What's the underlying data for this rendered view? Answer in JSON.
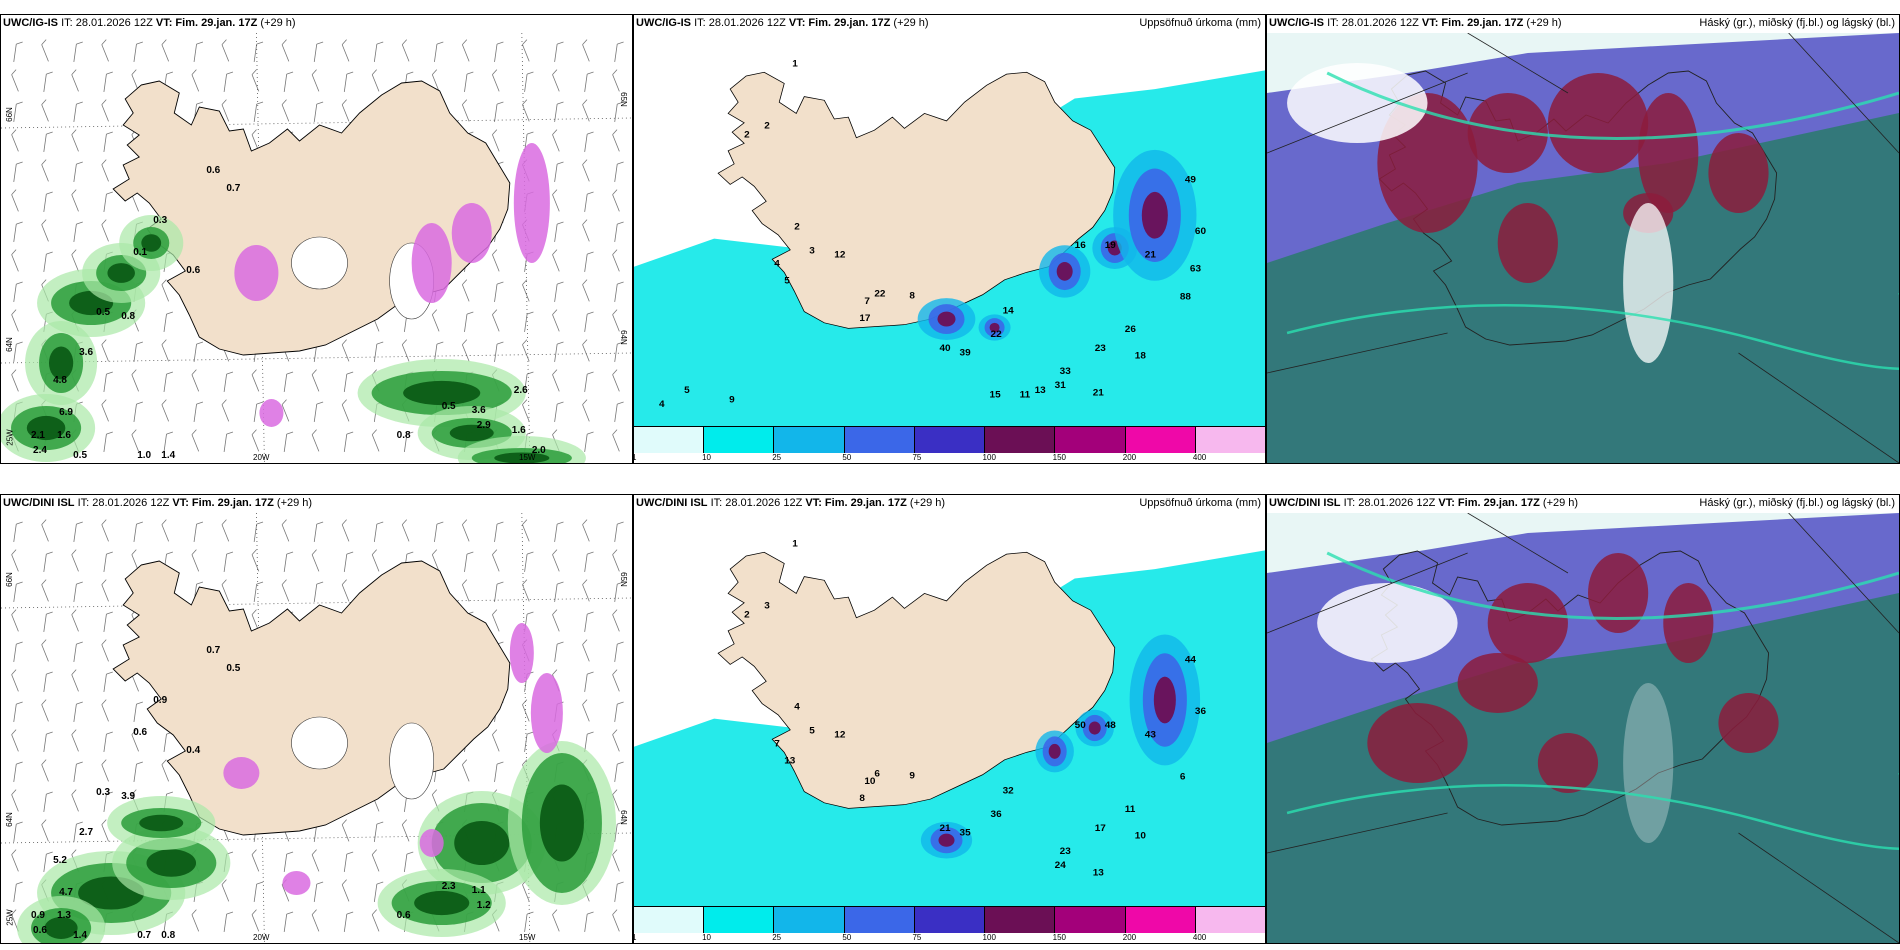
{
  "panels": [
    {
      "id": "p1",
      "model": "UWC/IG-IS",
      "it": "IT: 28.01.2026 12Z",
      "vt_label": "VT:",
      "vt": "Fim. 29.jan. 17Z",
      "lead": "(+29 h)",
      "title": "",
      "type": "wind",
      "axis": {
        "lat_top": "66N",
        "lat_mid": "64N",
        "lat_bot": "25W",
        "lon_a": "20W",
        "lon_b": "15W",
        "right_top": "65N",
        "right_mid": "64N"
      },
      "values": [
        "0.6",
        "0.7",
        "0.3",
        "0.1",
        "0.6",
        "0.5",
        "0.8",
        "3.6",
        "4.8",
        "6.9",
        "2.1",
        "1.6",
        "2.4",
        "0.5",
        "1.0",
        "1.4",
        "0.5",
        "3.6",
        "2.9",
        "0.8",
        "2.0",
        "2.6",
        "1.6"
      ]
    },
    {
      "id": "p2",
      "model": "UWC/IG-IS",
      "it": "IT: 28.01.2026 12Z",
      "vt_label": "VT:",
      "vt": "Fim. 29.jan. 17Z",
      "lead": "(+29 h)",
      "title": "Uppsöfnuð úrkoma (mm)",
      "type": "precip",
      "values": [
        "1",
        "2",
        "2",
        "2",
        "3",
        "4",
        "5",
        "7",
        "12",
        "22",
        "17",
        "8",
        "40",
        "39",
        "22",
        "14",
        "31",
        "33",
        "23",
        "21",
        "26",
        "18",
        "16",
        "19",
        "21",
        "49",
        "60",
        "88",
        "63",
        "11",
        "15",
        "13",
        "9",
        "5",
        "4"
      ]
    },
    {
      "id": "p3",
      "model": "UWC/IG-IS",
      "it": "IT: 28.01.2026 12Z",
      "vt_label": "VT:",
      "vt": "Fim. 29.jan. 17Z",
      "lead": "(+29 h)",
      "title": "Háský (gr.), miðský (fj.bl.) og lágský (bl.)",
      "type": "cloud"
    },
    {
      "id": "p4",
      "model": "UWC/DINI ISL",
      "it": "IT: 28.01.2026 12Z",
      "vt_label": "VT:",
      "vt": "Fim. 29.jan. 17Z",
      "lead": "(+29 h)",
      "title": "",
      "type": "wind",
      "axis": {
        "lat_top": "66N",
        "lat_mid": "64N",
        "lat_bot": "25W",
        "lon_a": "20W",
        "lon_b": "15W",
        "right_top": "65N",
        "right_mid": "64N"
      },
      "values": [
        "0.7",
        "0.5",
        "0.9",
        "0.6",
        "0.4",
        "0.3",
        "3.9",
        "2.7",
        "5.2",
        "4.7",
        "0.9",
        "1.3",
        "0.6",
        "1.4",
        "0.7",
        "0.8",
        "2.3",
        "1.1",
        "1.2",
        "0.6"
      ]
    },
    {
      "id": "p5",
      "model": "UWC/DINI ISL",
      "it": "IT: 28.01.2026 12Z",
      "vt_label": "VT:",
      "vt": "Fim. 29.jan. 17Z",
      "lead": "(+29 h)",
      "title": "Uppsöfnuð úrkoma (mm)",
      "type": "precip",
      "values": [
        "1",
        "2",
        "3",
        "4",
        "5",
        "7",
        "13",
        "10",
        "12",
        "6",
        "8",
        "9",
        "21",
        "35",
        "36",
        "32",
        "24",
        "23",
        "17",
        "13",
        "11",
        "10",
        "50",
        "48",
        "43",
        "44",
        "36",
        "6"
      ]
    },
    {
      "id": "p6",
      "model": "UWC/DINI ISL",
      "it": "IT: 28.01.2026 12Z",
      "vt_label": "VT:",
      "vt": "Fim. 29.jan. 17Z",
      "lead": "(+29 h)",
      "title": "Háský (gr.), miðský (fj.bl.) og lágský (bl.)",
      "type": "cloud"
    }
  ],
  "legend": {
    "labels": [
      "1",
      "10",
      "25",
      "50",
      "75",
      "100",
      "150",
      "200",
      "400"
    ],
    "colors": [
      "#e0fbfb",
      "#00ecec",
      "#12b6ea",
      "#3b67e8",
      "#3a2fc4",
      "#6b0f55",
      "#a3007a",
      "#ef08a8",
      "#f7b8ee"
    ]
  },
  "colors": {
    "land": "#f2e0cb",
    "wind_dark": "#0c5c16",
    "wind_mid": "#2a9c3a",
    "wind_light": "#a9e8a7",
    "pink": "#d96be0",
    "cyan": "#00e6e6",
    "cloud_blue": "#5a5ac8",
    "cloud_red": "#8c1c3c",
    "cloud_teal": "#2f7a73"
  }
}
